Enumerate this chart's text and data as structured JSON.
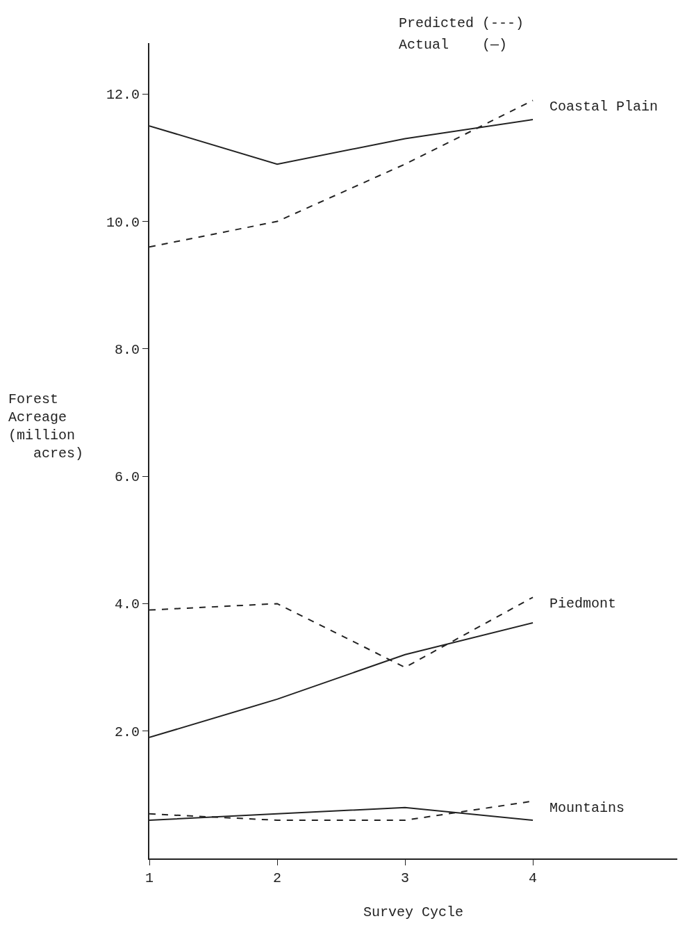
{
  "chart_data": {
    "type": "line",
    "xlabel": "Survey Cycle",
    "ylabel": "Forest\nAcreage\n(million\n   acres)",
    "x": [
      1,
      2,
      3,
      4
    ],
    "xlim": [
      1,
      5.13
    ],
    "xticks": [
      1,
      2,
      3,
      4
    ],
    "ylim": [
      0,
      12.8
    ],
    "yticks": [
      {
        "value": 2,
        "label": "2.0"
      },
      {
        "value": 4,
        "label": "4.0"
      },
      {
        "value": 6,
        "label": "6.0"
      },
      {
        "value": 8,
        "label": "8.0"
      },
      {
        "value": 10,
        "label": "10.0"
      },
      {
        "value": 12,
        "label": "12.0"
      }
    ],
    "marker": "none",
    "series": [
      {
        "color": "#222222",
        "line_style": "solid",
        "values": [
          11.5,
          10.9,
          11.3,
          11.6
        ]
      },
      {
        "name": "Coastal Plain",
        "color": "#222222",
        "line_style": "dashed",
        "values": [
          9.6,
          10.0,
          10.9,
          11.9
        ]
      },
      {
        "name": "Piedmont",
        "color": "#222222",
        "line_style": "dashed",
        "values": [
          3.9,
          4.0,
          3.0,
          4.1
        ]
      },
      {
        "color": "#222222",
        "line_style": "solid",
        "values": [
          1.9,
          2.5,
          3.2,
          3.7
        ]
      },
      {
        "name": "Mountains",
        "color": "#222222",
        "line_style": "dashed",
        "values": [
          0.7,
          0.6,
          0.6,
          0.9
        ]
      },
      {
        "color": "#222222",
        "line_style": "solid",
        "values": [
          0.6,
          0.7,
          0.8,
          0.6
        ]
      }
    ],
    "annotations": [
      "Predicted (---)",
      "Actual    (—)"
    ]
  }
}
